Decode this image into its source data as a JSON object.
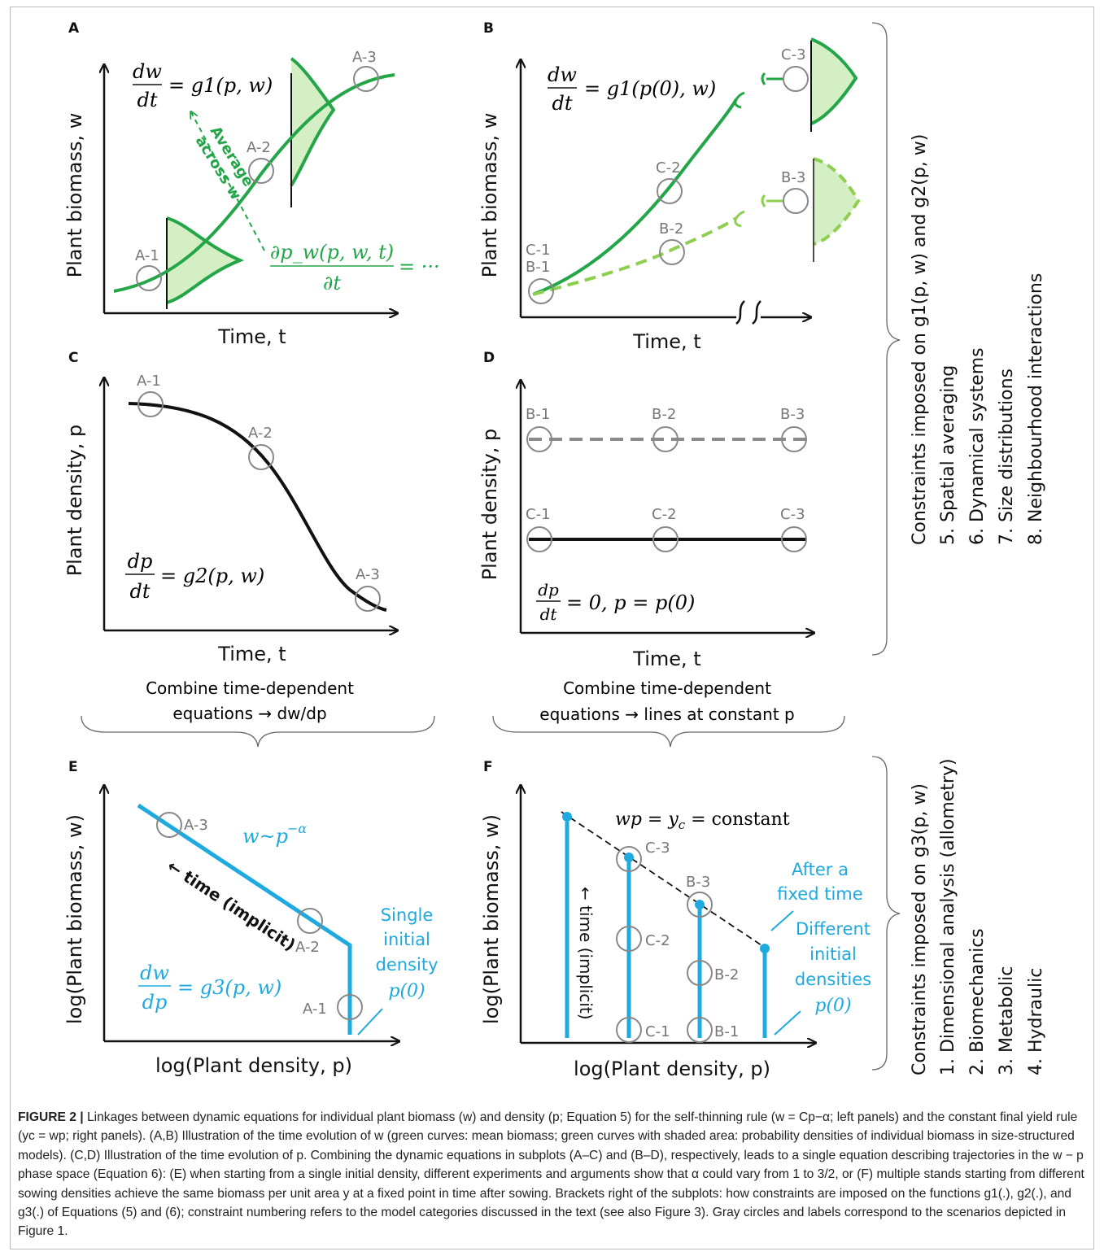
{
  "panels": {
    "A": {
      "letter": "A",
      "ylabel": "Plant biomass, w",
      "xlabel": "Time, t",
      "circles": [
        "A-1",
        "A-2",
        "A-3"
      ],
      "eq_lhs_num": "dw",
      "eq_lhs_den": "dt",
      "eq_rhs": "= g1(p, w)",
      "average_l1": "Average",
      "average_l2": "across w",
      "pde_num": "∂p_w(p, w, t)",
      "pde_den": "∂t",
      "pde_rhs": "= ···",
      "colors": {
        "curve": "#23a548",
        "fill": "#d4efc4"
      }
    },
    "B": {
      "letter": "B",
      "ylabel": "Plant biomass, w",
      "xlabel": "Time, t",
      "circles_solid": [
        "C-1",
        "C-2",
        "C-3"
      ],
      "circles_dashed": [
        "B-1",
        "B-2",
        "B-3"
      ],
      "eq_lhs_num": "dw",
      "eq_lhs_den": "dt",
      "eq_rhs": "= g1(p(0), w)",
      "colors": {
        "solid": "#23a548",
        "dashed": "#8fcf50"
      }
    },
    "C": {
      "letter": "C",
      "ylabel": "Plant density, p",
      "xlabel": "Time, t",
      "circles": [
        "A-1",
        "A-2",
        "A-3"
      ],
      "eq_lhs_num": "dp",
      "eq_lhs_den": "dt",
      "eq_rhs": "= g2(p, w)"
    },
    "D": {
      "letter": "D",
      "ylabel": "Plant density, p",
      "xlabel": "Time, t",
      "circles_top": [
        "B-1",
        "B-2",
        "B-3"
      ],
      "circles_bottom": [
        "C-1",
        "C-2",
        "C-3"
      ],
      "eq_lhs_num": "dp",
      "eq_lhs_den": "dt",
      "eq_rhs": "= 0, p = p(0)"
    },
    "E": {
      "letter": "E",
      "ylabel": "log(Plant biomass, w)",
      "xlabel": "log(Plant density, p)",
      "circles": [
        "A-1",
        "A-2",
        "A-3"
      ],
      "powerlaw": "w~p",
      "powerlaw_exp": "−α",
      "time_label": "← time (implicit)",
      "single_l1": "Single",
      "single_l2": "initial",
      "single_l3": "density",
      "single_l4": "p(0)",
      "eq_lhs_num": "dw",
      "eq_lhs_den": "dp",
      "eq_rhs": "= g3(p, w)",
      "colors": {
        "line": "#1ea9df"
      }
    },
    "F": {
      "letter": "F",
      "ylabel": "log(Plant biomass, w)",
      "xlabel": "log(Plant density, p)",
      "circles": [
        "C-3",
        "C-2",
        "C-1",
        "B-3",
        "B-2",
        "B-1"
      ],
      "yield_eq": "wp = y",
      "yield_sub": "c",
      "yield_rest": " = constant",
      "time_label": "← time (implicit)",
      "after_l1": "After a",
      "after_l2": "fixed time",
      "diff_l1": "Different",
      "diff_l2": "initial",
      "diff_l3": "densities",
      "diff_l4": "p(0)"
    }
  },
  "combine_left_l1": "Combine time-dependent",
  "combine_left_l2": "equations → dw/dp",
  "combine_right_l1": "Combine time-dependent",
  "combine_right_l2": "equations → lines at constant p",
  "right_top": {
    "heading": "Constraints imposed on g1(p, w) and g2(p, w)",
    "items": [
      "5.  Spatial averaging",
      "6.  Dynamical systems",
      "7.  Size distributions",
      "8.  Neighbourhood interactions"
    ]
  },
  "right_bottom": {
    "heading": "Constraints imposed on g3(p, w)",
    "items": [
      "1.  Dimensional analysis (allometry)",
      "2.  Biomechanics",
      "3.  Metabolic",
      "4.  Hydraulic"
    ]
  },
  "caption": {
    "label": "FIGURE 2 |",
    "text": " Linkages between dynamic equations for individual plant biomass (w) and density (p; Equation 5) for the self-thinning rule (w = Cp−α; left panels) and the constant final yield rule (yc = wp; right panels). (A,B) Illustration of the time evolution of w (green curves: mean biomass; green curves with shaded area: probability densities of individual biomass in size-structured models). (C,D) Illustration of the time evolution of p. Combining the dynamic equations in subplots (A–C) and (B–D), respectively, leads to a single equation describing trajectories in the w − p phase space (Equation 6): (E) when starting from a single initial density, different experiments and arguments show that α could vary from 1 to 3/2, or (F) multiple stands starting from different sowing densities achieve the same biomass per unit area y at a fixed point in time after sowing. Brackets right of the subplots: how constraints are imposed on the functions g1(.), g2(.), and g3(.) of Equations (5) and (6); constraint numbering refers to the model categories discussed in the text (see also Figure 3). Gray circles and labels correspond to the scenarios depicted in Figure 1."
  }
}
